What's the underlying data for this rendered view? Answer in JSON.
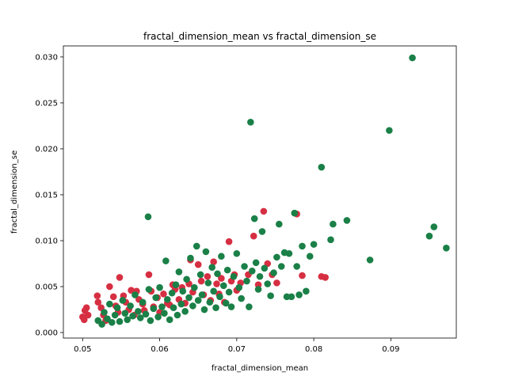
{
  "chart_data": {
    "type": "scatter",
    "title": "fractal_dimension_mean vs fractal_dimension_se",
    "xlabel": "fractal_dimension_mean",
    "ylabel": "fractal_dimension_se",
    "xlim": [
      0.0475,
      0.0985
    ],
    "ylim": [
      -0.0006,
      0.0312
    ],
    "xticks": [
      0.05,
      0.06,
      0.07,
      0.08,
      0.09
    ],
    "xtick_labels": [
      "0.05",
      "0.06",
      "0.07",
      "0.08",
      "0.09"
    ],
    "yticks": [
      0.0,
      0.005,
      0.01,
      0.015,
      0.02,
      0.025,
      0.03
    ],
    "ytick_labels": [
      "0.000",
      "0.005",
      "0.010",
      "0.015",
      "0.020",
      "0.025",
      "0.030"
    ],
    "grid": false,
    "series": [
      {
        "color": "#d62f42",
        "points": [
          [
            0.05,
            0.0017
          ],
          [
            0.0503,
            0.0024
          ],
          [
            0.0505,
            0.0027
          ],
          [
            0.0507,
            0.0019
          ],
          [
            0.0502,
            0.0014
          ],
          [
            0.0519,
            0.004
          ],
          [
            0.052,
            0.0033
          ],
          [
            0.0524,
            0.0027
          ],
          [
            0.0527,
            0.0019
          ],
          [
            0.053,
            0.0013
          ],
          [
            0.0535,
            0.005
          ],
          [
            0.054,
            0.0039
          ],
          [
            0.0543,
            0.0029
          ],
          [
            0.0546,
            0.0022
          ],
          [
            0.0548,
            0.006
          ],
          [
            0.0553,
            0.004
          ],
          [
            0.0556,
            0.0033
          ],
          [
            0.056,
            0.0025
          ],
          [
            0.0563,
            0.0046
          ],
          [
            0.0567,
            0.0019
          ],
          [
            0.057,
            0.0045
          ],
          [
            0.0573,
            0.0036
          ],
          [
            0.0578,
            0.0031
          ],
          [
            0.058,
            0.0024
          ],
          [
            0.0586,
            0.0063
          ],
          [
            0.0589,
            0.0045
          ],
          [
            0.0592,
            0.0028
          ],
          [
            0.0597,
            0.0038
          ],
          [
            0.06,
            0.0022
          ],
          [
            0.0605,
            0.0042
          ],
          [
            0.061,
            0.0032
          ],
          [
            0.0613,
            0.003
          ],
          [
            0.0617,
            0.0052
          ],
          [
            0.062,
            0.0047
          ],
          [
            0.0625,
            0.0036
          ],
          [
            0.0629,
            0.0049
          ],
          [
            0.0633,
            0.0032
          ],
          [
            0.0638,
            0.0053
          ],
          [
            0.064,
            0.0079
          ],
          [
            0.0643,
            0.0044
          ],
          [
            0.065,
            0.0074
          ],
          [
            0.0654,
            0.0056
          ],
          [
            0.0657,
            0.0041
          ],
          [
            0.0662,
            0.0061
          ],
          [
            0.0666,
            0.0035
          ],
          [
            0.067,
            0.0077
          ],
          [
            0.0674,
            0.0053
          ],
          [
            0.0677,
            0.0042
          ],
          [
            0.068,
            0.0059
          ],
          [
            0.0684,
            0.0033
          ],
          [
            0.069,
            0.0099
          ],
          [
            0.0693,
            0.0056
          ],
          [
            0.0697,
            0.0063
          ],
          [
            0.07,
            0.0046
          ],
          [
            0.0705,
            0.0054
          ],
          [
            0.0715,
            0.0063
          ],
          [
            0.0722,
            0.0105
          ],
          [
            0.0728,
            0.0052
          ],
          [
            0.0735,
            0.0132
          ],
          [
            0.074,
            0.0075
          ],
          [
            0.0746,
            0.0063
          ],
          [
            0.0752,
            0.0054
          ],
          [
            0.0778,
            0.0129
          ],
          [
            0.0785,
            0.0062
          ],
          [
            0.081,
            0.0061
          ],
          [
            0.0815,
            0.006
          ]
        ]
      },
      {
        "color": "#1a8047",
        "points": [
          [
            0.052,
            0.0013
          ],
          [
            0.0525,
            0.0009
          ],
          [
            0.0528,
            0.0022
          ],
          [
            0.0532,
            0.0015
          ],
          [
            0.0535,
            0.0031
          ],
          [
            0.0538,
            0.0011
          ],
          [
            0.0542,
            0.0019
          ],
          [
            0.0545,
            0.0027
          ],
          [
            0.0548,
            0.0012
          ],
          [
            0.0552,
            0.0035
          ],
          [
            0.0555,
            0.0021
          ],
          [
            0.0558,
            0.0014
          ],
          [
            0.0562,
            0.0029
          ],
          [
            0.0565,
            0.0018
          ],
          [
            0.0568,
            0.0041
          ],
          [
            0.0572,
            0.0023
          ],
          [
            0.0575,
            0.0016
          ],
          [
            0.0578,
            0.0033
          ],
          [
            0.0582,
            0.002
          ],
          [
            0.0585,
            0.0126
          ],
          [
            0.0586,
            0.0047
          ],
          [
            0.0588,
            0.0013
          ],
          [
            0.0592,
            0.0026
          ],
          [
            0.0595,
            0.0038
          ],
          [
            0.0598,
            0.0017
          ],
          [
            0.06,
            0.0049
          ],
          [
            0.0603,
            0.0028
          ],
          [
            0.0606,
            0.0021
          ],
          [
            0.0608,
            0.0078
          ],
          [
            0.061,
            0.0036
          ],
          [
            0.0613,
            0.0014
          ],
          [
            0.0616,
            0.0043
          ],
          [
            0.0618,
            0.0027
          ],
          [
            0.0621,
            0.0052
          ],
          [
            0.0623,
            0.0019
          ],
          [
            0.0625,
            0.0066
          ],
          [
            0.0628,
            0.0031
          ],
          [
            0.063,
            0.0045
          ],
          [
            0.0633,
            0.0023
          ],
          [
            0.0635,
            0.0058
          ],
          [
            0.0638,
            0.0038
          ],
          [
            0.064,
            0.0081
          ],
          [
            0.0643,
            0.0029
          ],
          [
            0.0645,
            0.0049
          ],
          [
            0.0648,
            0.0094
          ],
          [
            0.065,
            0.0035
          ],
          [
            0.0653,
            0.0063
          ],
          [
            0.0655,
            0.0041
          ],
          [
            0.0658,
            0.0025
          ],
          [
            0.066,
            0.0088
          ],
          [
            0.0663,
            0.0054
          ],
          [
            0.0665,
            0.0033
          ],
          [
            0.0668,
            0.0071
          ],
          [
            0.067,
            0.0045
          ],
          [
            0.0673,
            0.0027
          ],
          [
            0.0675,
            0.0064
          ],
          [
            0.0678,
            0.0039
          ],
          [
            0.068,
            0.0083
          ],
          [
            0.0683,
            0.0051
          ],
          [
            0.0686,
            0.0032
          ],
          [
            0.0688,
            0.0068
          ],
          [
            0.069,
            0.0044
          ],
          [
            0.0693,
            0.0028
          ],
          [
            0.0696,
            0.0061
          ],
          [
            0.07,
            0.0086
          ],
          [
            0.0703,
            0.0049
          ],
          [
            0.0706,
            0.0037
          ],
          [
            0.071,
            0.0072
          ],
          [
            0.0713,
            0.0056
          ],
          [
            0.0716,
            0.0028
          ],
          [
            0.0718,
            0.0229
          ],
          [
            0.072,
            0.0067
          ],
          [
            0.0723,
            0.0124
          ],
          [
            0.0725,
            0.0076
          ],
          [
            0.0728,
            0.0047
          ],
          [
            0.073,
            0.0061
          ],
          [
            0.0733,
            0.011
          ],
          [
            0.0736,
            0.007
          ],
          [
            0.074,
            0.0053
          ],
          [
            0.0744,
            0.004
          ],
          [
            0.0748,
            0.0065
          ],
          [
            0.0752,
            0.0082
          ],
          [
            0.0755,
            0.0118
          ],
          [
            0.0758,
            0.0072
          ],
          [
            0.0762,
            0.0087
          ],
          [
            0.0765,
            0.0039
          ],
          [
            0.0768,
            0.0086
          ],
          [
            0.0771,
            0.0039
          ],
          [
            0.0775,
            0.013
          ],
          [
            0.0778,
            0.0072
          ],
          [
            0.0781,
            0.0041
          ],
          [
            0.0785,
            0.0094
          ],
          [
            0.079,
            0.0045
          ],
          [
            0.0795,
            0.0083
          ],
          [
            0.08,
            0.0096
          ],
          [
            0.081,
            0.018
          ],
          [
            0.0822,
            0.0101
          ],
          [
            0.0825,
            0.0118
          ],
          [
            0.0843,
            0.0122
          ],
          [
            0.0873,
            0.0079
          ],
          [
            0.0898,
            0.022
          ],
          [
            0.0928,
            0.0299
          ],
          [
            0.095,
            0.0105
          ],
          [
            0.0956,
            0.0115
          ],
          [
            0.0972,
            0.0092
          ]
        ]
      }
    ]
  }
}
